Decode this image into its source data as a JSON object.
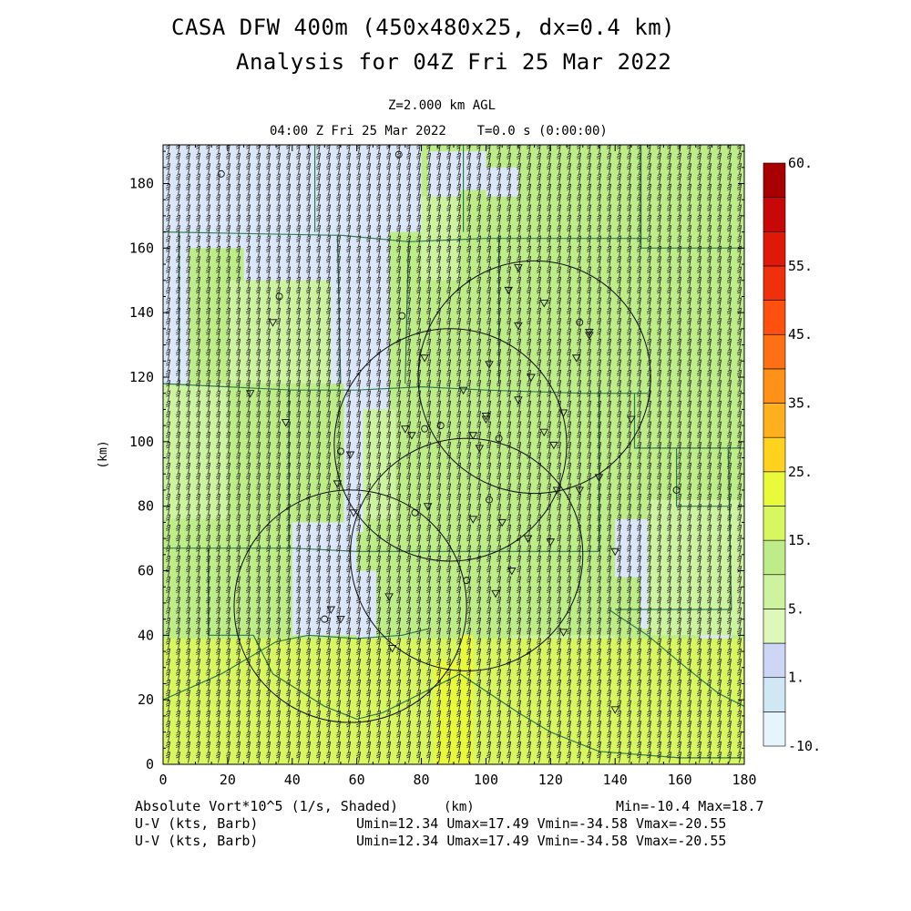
{
  "header": {
    "title_line1": "CASA DFW 400m (450x480x25, dx=0.4 km)",
    "title_line2": "Analysis for 04Z Fri 25 Mar 2022",
    "level": "Z=2.000 km AGL",
    "valid_time": "04:00 Z Fri 25 Mar 2022    T=0.0 s (0:00:00)"
  },
  "footer": {
    "field_label": "Absolute Vort*10^5 (1/s, Shaded)",
    "x_unit": "(km)",
    "minmax": "Min=-10.4 Max=18.7",
    "barb_label_1": "U-V (kts, Barb)",
    "barb_stats_1": "Umin=12.34 Umax=17.49 Vmin=-34.58 Vmax=-20.55",
    "barb_label_2": "U-V (kts, Barb)",
    "barb_stats_2": "Umin=12.34 Umax=17.49 Vmin=-34.58 Vmax=-20.55"
  },
  "chart_data": {
    "type": "heatmap",
    "title": "CASA DFW 400m (450x480x25, dx=0.4 km)",
    "subtitle": "Analysis for 04Z Fri 25 Mar 2022",
    "field": "Absolute Vort*10^5 (1/s, Shaded)",
    "xlabel": "(km)",
    "ylabel": "(km)",
    "xlim": [
      0,
      180
    ],
    "ylim": [
      0,
      192
    ],
    "xticks": [
      "0",
      "20",
      "40",
      "60",
      "80",
      "100",
      "120",
      "140",
      "160",
      "180"
    ],
    "yticks": [
      "0",
      "20",
      "40",
      "60",
      "80",
      "100",
      "120",
      "140",
      "160",
      "180"
    ],
    "colorbar": {
      "labels": [
        "-10.",
        "1.",
        "5.",
        "15.",
        "25.",
        "35.",
        "45.",
        "55.",
        "60."
      ],
      "colors": [
        "#e6f5fb",
        "#cfe8f3",
        "#cdd6f5",
        "#ddf8b8",
        "#cdf2a0",
        "#bdec88",
        "#d8f660",
        "#e8fa3a",
        "#ffd21e",
        "#ffb01c",
        "#ff9018",
        "#ff7014",
        "#ff5010",
        "#f0300c",
        "#e01808",
        "#c80808",
        "#a80000"
      ]
    },
    "min": -10.4,
    "max": 18.7,
    "wind_barbs": {
      "units": "kts",
      "umin": 12.34,
      "umax": 17.49,
      "vmin": -34.58,
      "vmax": -20.55
    },
    "radar_sites": [
      {
        "x": 115,
        "y": 120
      },
      {
        "x": 89,
        "y": 99
      },
      {
        "x": 94,
        "y": 65
      },
      {
        "x": 58,
        "y": 49
      }
    ],
    "radar_range_km": 36
  }
}
